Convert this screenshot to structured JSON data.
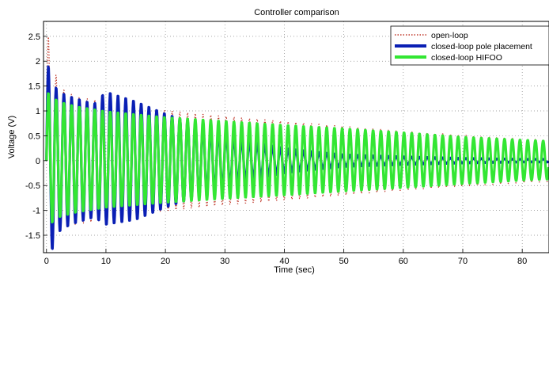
{
  "chart_data": {
    "type": "line",
    "title": "Controller comparison",
    "xlabel": "Time (sec)",
    "ylabel": "Voltage (V)",
    "xlim": [
      -0.5,
      84.5
    ],
    "ylim": [
      -1.85,
      2.8
    ],
    "x_ticks": [
      0,
      10,
      20,
      30,
      40,
      50,
      60,
      70,
      80
    ],
    "x_tick_labels": [
      "0",
      "10",
      "20",
      "30",
      "40",
      "50",
      "60",
      "70",
      "80"
    ],
    "y_ticks": [
      -1.5,
      -1,
      -0.5,
      0,
      0.5,
      1,
      1.5,
      2,
      2.5
    ],
    "y_tick_labels": [
      "-1.5",
      "-1",
      "-0.5",
      "0",
      "0.5",
      "1",
      "1.5",
      "2",
      "2.5"
    ],
    "grid": true,
    "legend_position": "top-right",
    "oscillation_period_sec": 1.3,
    "series": [
      {
        "name": "open-loop",
        "color": "#c0392b",
        "style": "dotted",
        "envelope": {
          "x": [
            0,
            2,
            5,
            10,
            20,
            30,
            40,
            50,
            60,
            70,
            80,
            84
          ],
          "upper": [
            2.7,
            1.5,
            1.3,
            1.2,
            1.02,
            0.9,
            0.8,
            0.7,
            0.6,
            0.52,
            0.45,
            0.43
          ],
          "lower": [
            -1.7,
            -1.4,
            -1.3,
            -1.2,
            -1.02,
            -0.9,
            -0.8,
            -0.7,
            -0.6,
            -0.52,
            -0.45,
            -0.43
          ]
        }
      },
      {
        "name": "closed-loop pole placement",
        "color": "#0a1fb4",
        "style": "solid",
        "envelope": {
          "x": [
            0,
            1,
            2,
            4,
            8,
            10,
            15,
            20,
            25,
            30,
            35,
            40,
            45,
            50,
            55,
            60,
            70,
            80,
            84
          ],
          "upper": [
            2.05,
            1.6,
            1.4,
            1.3,
            1.15,
            1.4,
            1.2,
            0.95,
            0.75,
            0.55,
            0.38,
            0.25,
            0.18,
            0.12,
            0.1,
            0.08,
            0.05,
            0.03,
            0.03
          ],
          "lower": [
            -1.6,
            -1.8,
            -1.45,
            -1.3,
            -1.15,
            -1.3,
            -1.2,
            -0.95,
            -0.75,
            -0.55,
            -0.38,
            -0.25,
            -0.18,
            -0.12,
            -0.1,
            -0.08,
            -0.05,
            -0.03,
            -0.03
          ]
        }
      },
      {
        "name": "closed-loop HIFOO",
        "color": "#33e633",
        "style": "solid",
        "envelope": {
          "x": [
            0,
            2,
            5,
            10,
            20,
            30,
            40,
            50,
            60,
            70,
            80,
            84
          ],
          "upper": [
            1.4,
            1.2,
            1.1,
            1.0,
            0.88,
            0.8,
            0.72,
            0.65,
            0.57,
            0.48,
            0.42,
            0.4
          ],
          "lower": [
            -1.35,
            -1.15,
            -1.05,
            -0.95,
            -0.85,
            -0.77,
            -0.7,
            -0.62,
            -0.55,
            -0.47,
            -0.4,
            -0.38
          ]
        }
      }
    ]
  }
}
